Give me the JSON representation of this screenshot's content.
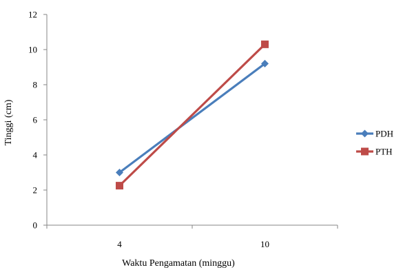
{
  "chart_data": {
    "type": "line",
    "categories": [
      "4",
      "10"
    ],
    "xlabel": "Waktu Pengamatan (minggu)",
    "ylabel": "Tinggi (cm)",
    "ylim": [
      0,
      12
    ],
    "yticks": [
      0,
      2,
      4,
      6,
      8,
      10,
      12
    ],
    "grid": false,
    "legend_position": "right",
    "series": [
      {
        "name": "PDH",
        "values": [
          3.0,
          9.2
        ],
        "color": "#4a7ebb",
        "marker": "diamond"
      },
      {
        "name": "PTH",
        "values": [
          2.25,
          10.3
        ],
        "color": "#be4b48",
        "marker": "square"
      }
    ]
  }
}
